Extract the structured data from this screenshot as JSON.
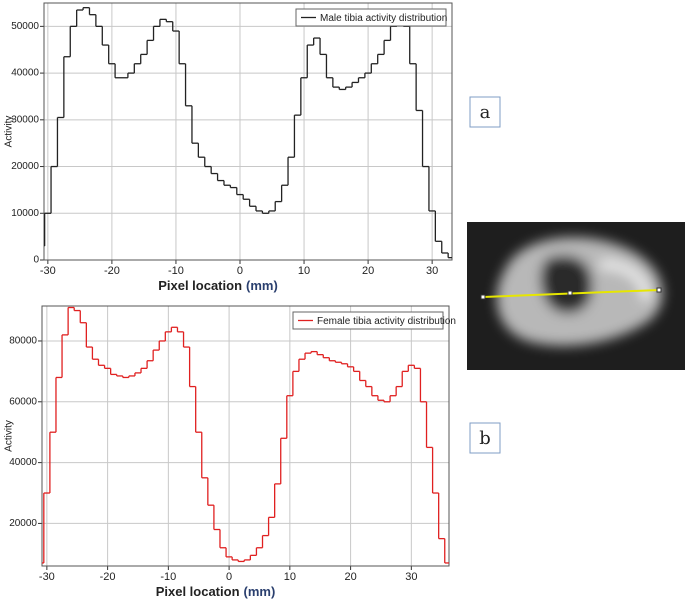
{
  "chart_data": [
    {
      "type": "step",
      "panel": "a",
      "xlabel": "Pixel location",
      "xunit": "(mm)",
      "ylabel": "Activity",
      "legend": "top-right",
      "grid": true,
      "xlim": [
        -30.6,
        33.1
      ],
      "ylim": [
        0,
        55000
      ],
      "xticks": [
        -30,
        -20,
        -10,
        0,
        10,
        20,
        30
      ],
      "yticks": [
        0,
        10000,
        20000,
        30000,
        40000,
        50000
      ],
      "x": [
        -31,
        -30,
        -29,
        -28,
        -27,
        -26,
        -25,
        -24,
        -23,
        -22,
        -21,
        -20,
        -19,
        -18,
        -17,
        -16,
        -15,
        -14,
        -13,
        -12,
        -11,
        -10,
        -9,
        -8,
        -7,
        -6,
        -5,
        -4,
        -3,
        -2,
        -1,
        0,
        1,
        2,
        3,
        4,
        5,
        6,
        7,
        8,
        9,
        10,
        11,
        12,
        13,
        14,
        15,
        16,
        17,
        18,
        19,
        20,
        21,
        22,
        23,
        24,
        25,
        26,
        27,
        28,
        29,
        30,
        31,
        32,
        33
      ],
      "series": [
        {
          "name": "Male tibia activity distribution",
          "color": "#222222",
          "values": [
            3000,
            10000,
            20000,
            30500,
            43500,
            50000,
            53500,
            54000,
            52500,
            50000,
            46000,
            42000,
            39000,
            39000,
            40000,
            42000,
            44000,
            47000,
            50000,
            51500,
            51000,
            49000,
            42000,
            33000,
            25000,
            22000,
            20000,
            18500,
            17000,
            16000,
            15500,
            14000,
            13000,
            11500,
            10500,
            10000,
            10500,
            12500,
            16000,
            22000,
            31000,
            39000,
            46000,
            47500,
            44000,
            39000,
            37000,
            36500,
            37000,
            38000,
            39000,
            40000,
            42000,
            44000,
            47000,
            50000,
            52000,
            50000,
            42000,
            32000,
            20000,
            10500,
            4000,
            1500,
            500
          ]
        }
      ]
    },
    {
      "type": "step",
      "panel": "b",
      "xlabel": "Pixel location",
      "xunit": "(mm)",
      "ylabel": "Activity",
      "legend": "top-right",
      "grid": true,
      "xlim": [
        -30.8,
        36.2
      ],
      "ylim": [
        6000,
        91500
      ],
      "xticks": [
        -30,
        -20,
        -10,
        0,
        10,
        20,
        30
      ],
      "yticks": [
        20000,
        40000,
        60000,
        80000
      ],
      "x": [
        -31,
        -30,
        -29,
        -28,
        -27,
        -26,
        -25,
        -24,
        -23,
        -22,
        -21,
        -20,
        -19,
        -18,
        -17,
        -16,
        -15,
        -14,
        -13,
        -12,
        -11,
        -10,
        -9,
        -8,
        -7,
        -6,
        -5,
        -4,
        -3,
        -2,
        -1,
        0,
        1,
        2,
        3,
        4,
        5,
        6,
        7,
        8,
        9,
        10,
        11,
        12,
        13,
        14,
        15,
        16,
        17,
        18,
        19,
        20,
        21,
        22,
        23,
        24,
        25,
        26,
        27,
        28,
        29,
        30,
        31,
        32,
        33,
        34,
        35,
        36
      ],
      "series": [
        {
          "name": "Female tibia activity distribution",
          "color": "#e02020",
          "values": [
            7000,
            30000,
            50000,
            68000,
            82000,
            91000,
            90000,
            86000,
            78000,
            74000,
            72000,
            71000,
            69000,
            68500,
            68000,
            68500,
            69500,
            71000,
            73500,
            77000,
            80000,
            83000,
            84500,
            83000,
            78000,
            65000,
            50000,
            35000,
            26000,
            18000,
            12000,
            9000,
            8000,
            7500,
            8000,
            9500,
            12000,
            16000,
            22000,
            33000,
            48000,
            62000,
            70000,
            74000,
            76000,
            76500,
            75500,
            74500,
            73500,
            73000,
            72500,
            71500,
            70000,
            67000,
            65000,
            62000,
            60500,
            60000,
            62000,
            65000,
            70000,
            72000,
            71000,
            60000,
            45000,
            30000,
            15000,
            7000
          ]
        }
      ]
    }
  ]
}
